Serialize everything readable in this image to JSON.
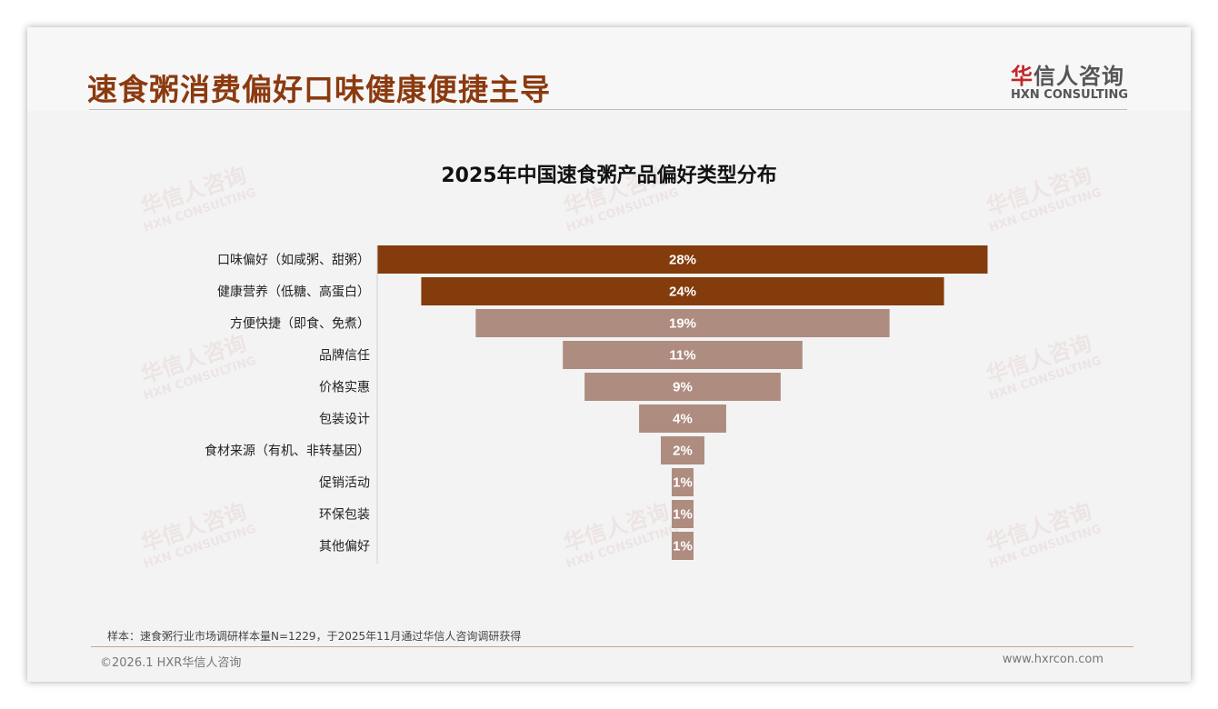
{
  "header": {
    "title": "速食粥消费偏好口味健康便捷主导",
    "logo_cn_red": "华",
    "logo_cn_rest": "信人咨询",
    "logo_en": "HXN CONSULTING"
  },
  "watermark": {
    "cn": "华信人咨询",
    "en": "HXN CONSULTING"
  },
  "chart_data": {
    "type": "bar",
    "subtype": "funnel",
    "title": "2025年中国速食粥产品偏好类型分布",
    "categories": [
      "口味偏好（如咸粥、甜粥）",
      "健康营养（低糖、高蛋白）",
      "方便快捷（即食、免煮）",
      "品牌信任",
      "价格实惠",
      "包装设计",
      "食材来源（有机、非转基因）",
      "促销活动",
      "环保包装",
      "其他偏好"
    ],
    "values": [
      28,
      24,
      19,
      11,
      9,
      4,
      2,
      1,
      1,
      1
    ],
    "labels": [
      "28%",
      "24%",
      "19%",
      "11%",
      "9%",
      "4%",
      "2%",
      "1%",
      "1%",
      "1%"
    ],
    "unit": "%",
    "colors": {
      "top": "#843c0c",
      "rest": "#ae8c80"
    },
    "highlight_count": 2
  },
  "footer": {
    "note": "样本：速食粥行业市场调研样本量N=1229，于2025年11月通过华信人咨询调研获得",
    "copyright": "©2026.1 HXR华信人咨询",
    "url": "www.hxrcon.com"
  }
}
